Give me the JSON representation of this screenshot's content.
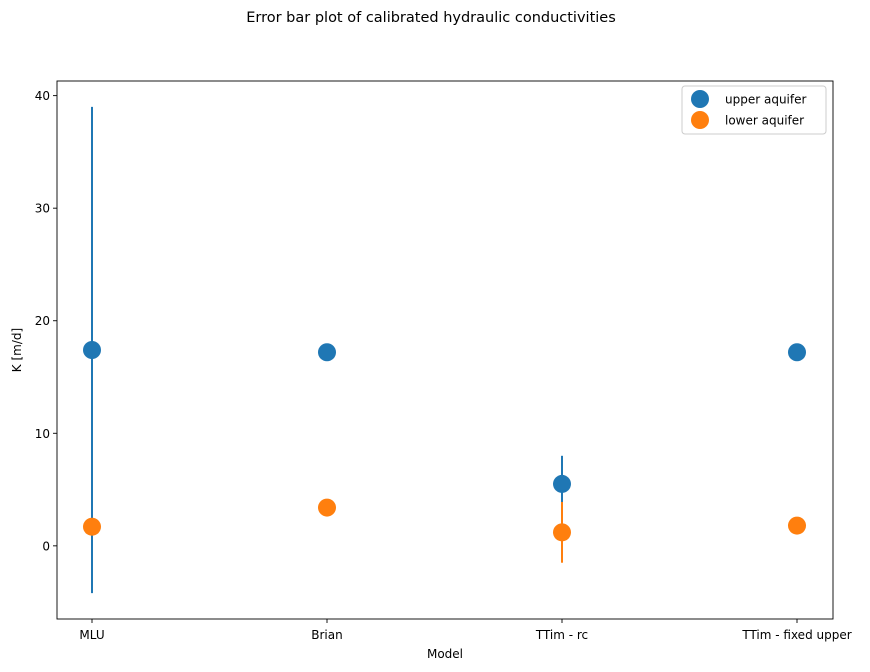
{
  "chart_data": {
    "type": "scatter",
    "title": "Error bar plot of calibrated hydraulic conductivities",
    "xlabel": "Model",
    "ylabel": "K [m/d]",
    "categories": [
      "MLU",
      "Brian",
      "TTim - rc",
      "TTim - fixed upper"
    ],
    "ylim": [
      -6.5,
      41.3
    ],
    "yticks": [
      0,
      10,
      20,
      30,
      40
    ],
    "grid": false,
    "legend_position": "top-right",
    "series": [
      {
        "name": "upper aquifer",
        "color": "#1f77b4",
        "values": [
          17.4,
          17.2,
          5.5,
          17.2
        ],
        "errors": [
          21.6,
          null,
          2.5,
          null
        ]
      },
      {
        "name": "lower aquifer",
        "color": "#ff7f0e",
        "values": [
          1.7,
          3.4,
          1.2,
          1.8
        ],
        "errors": [
          null,
          null,
          2.7,
          null
        ]
      }
    ]
  }
}
